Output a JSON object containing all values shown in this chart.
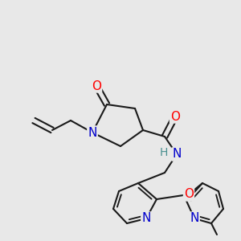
{
  "bg_color": "#e8e8e8",
  "atom_colors": {
    "N": "#0000cc",
    "O": "#ff0000",
    "H": "#4a9090",
    "C": "#1a1a1a"
  },
  "bond_color": "#1a1a1a",
  "bond_width": 1.5,
  "dbo": 0.012,
  "font_size_atom": 11,
  "figsize": [
    3.0,
    3.0
  ],
  "dpi": 100
}
